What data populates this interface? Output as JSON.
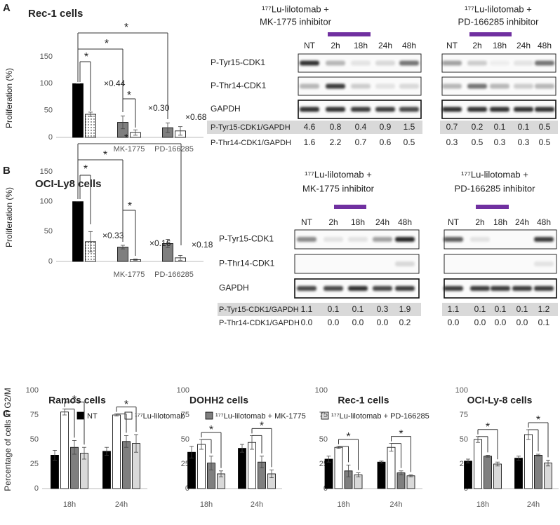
{
  "panel_labels": [
    "A",
    "B",
    "C"
  ],
  "legend": [
    {
      "name": "NT",
      "color": "#000000"
    },
    {
      "name": "¹⁷⁷Lu-lilotomab",
      "color": "#ffffff"
    },
    {
      "name": "¹⁷⁷Lu-lilotomab + MK-1775",
      "color": "#7f7f7f"
    },
    {
      "name": "¹⁷⁷Lu-lilotomab + PD-166285",
      "color": "#d9d9d9"
    }
  ],
  "chart_data": [
    {
      "type": "bar",
      "title": "Rec-1 cells",
      "ylabel": "Proliferation (%)",
      "categories": [
        null,
        "MK-1775",
        "PD-166285"
      ],
      "series": [
        {
          "colors": [
            "#000000",
            "#7f7f7f",
            "#7f7f7f"
          ],
          "values": [
            100,
            28,
            18
          ],
          "errors": [
            0,
            12,
            9
          ]
        },
        {
          "colors": [
            "#ffffff",
            "#ffffff",
            "#ffffff"
          ],
          "patterns": [
            "dots",
            null,
            null
          ],
          "values": [
            43,
            9,
            12
          ],
          "errors": [
            4,
            5,
            8
          ]
        }
      ],
      "ylim": [
        0,
        150
      ],
      "yticks": [
        0,
        50,
        100,
        150
      ],
      "annotations": [
        "×0.44",
        "×0.30",
        "×0.68"
      ],
      "significance": [
        "*",
        "*",
        "*",
        "*"
      ]
    },
    {
      "type": "bar",
      "title": "OCI-Ly8 cells",
      "ylabel": "Proliferation (%)",
      "categories": [
        null,
        "MK-1775",
        "PD-166285"
      ],
      "series": [
        {
          "colors": [
            "#000000",
            "#7f7f7f",
            "#7f7f7f"
          ],
          "values": [
            100,
            24,
            30
          ],
          "errors": [
            0,
            3,
            7
          ]
        },
        {
          "colors": [
            "#ffffff",
            "#ffffff",
            "#ffffff"
          ],
          "patterns": [
            "dots",
            null,
            null
          ],
          "values": [
            33,
            3,
            6
          ],
          "errors": [
            17,
            1,
            4
          ]
        }
      ],
      "ylim": [
        0,
        150
      ],
      "yticks": [
        0,
        50,
        100,
        150
      ],
      "annotations": [
        "×0.33",
        "×0.16",
        "×0.18"
      ],
      "significance": [
        "*",
        "*",
        "*",
        "*"
      ]
    },
    {
      "type": "bar",
      "title": "Ramos cells",
      "ylabel": "Percentage of cells in G2/M",
      "categories": [
        "18h",
        "24h"
      ],
      "series": [
        {
          "values": [
            34,
            38
          ],
          "errors": [
            5,
            4
          ]
        },
        {
          "values": [
            78,
            75
          ],
          "errors": [
            3,
            1
          ]
        },
        {
          "values": [
            42,
            48
          ],
          "errors": [
            7,
            6
          ]
        },
        {
          "values": [
            36,
            46
          ],
          "errors": [
            6,
            9
          ]
        }
      ],
      "ylim": [
        0,
        100
      ],
      "yticks": [
        0,
        25,
        50,
        75,
        100
      ],
      "significance": [
        "*",
        "*"
      ]
    },
    {
      "type": "bar",
      "title": "DOHH2 cells",
      "categories": [
        "18h",
        "24h"
      ],
      "series": [
        {
          "values": [
            37,
            41
          ],
          "errors": [
            6,
            4
          ]
        },
        {
          "values": [
            45,
            47
          ],
          "errors": [
            5,
            7
          ]
        },
        {
          "values": [
            26,
            27
          ],
          "errors": [
            7,
            6
          ]
        },
        {
          "values": [
            15,
            15
          ],
          "errors": [
            3,
            4
          ]
        }
      ],
      "ylim": [
        0,
        100
      ],
      "yticks": [
        0,
        25,
        50,
        75,
        100
      ],
      "significance": [
        "*",
        "*"
      ]
    },
    {
      "type": "bar",
      "title": "Rec-1 cells",
      "categories": [
        "18h",
        "24h"
      ],
      "series": [
        {
          "values": [
            30,
            27
          ],
          "errors": [
            3,
            1
          ]
        },
        {
          "values": [
            42,
            42
          ],
          "errors": [
            1,
            4
          ]
        },
        {
          "values": [
            18,
            16
          ],
          "errors": [
            6,
            2
          ]
        },
        {
          "values": [
            14,
            13
          ],
          "errors": [
            2,
            1
          ]
        }
      ],
      "ylim": [
        0,
        100
      ],
      "yticks": [
        0,
        25,
        50,
        75,
        100
      ],
      "significance": [
        "*",
        "*"
      ]
    },
    {
      "type": "bar",
      "title": "OCI-Ly-8 cells",
      "categories": [
        "18h",
        "24h"
      ],
      "series": [
        {
          "values": [
            28,
            31
          ],
          "errors": [
            2,
            2
          ]
        },
        {
          "values": [
            50,
            55
          ],
          "errors": [
            3,
            5
          ]
        },
        {
          "values": [
            33,
            34
          ],
          "errors": [
            1,
            1
          ]
        },
        {
          "values": [
            25,
            26
          ],
          "errors": [
            2,
            3
          ]
        }
      ],
      "ylim": [
        0,
        100
      ],
      "yticks": [
        0,
        25,
        50,
        75,
        100
      ],
      "significance": [
        "*",
        "*"
      ]
    }
  ],
  "blots": [
    {
      "title_lines": [
        "¹⁷⁷Lu-lilotomab +",
        "MK-1775 inhibitor"
      ],
      "lanes": [
        "NT",
        "2h",
        "18h",
        "24h",
        "48h"
      ],
      "rows": [
        "P-Tyr15-CDK1",
        "P-Thr14-CDK1",
        "GAPDH"
      ],
      "quant": [
        {
          "label": "P-Tyr15-CDK1/GAPDH",
          "values": [
            "4.6",
            "0.8",
            "0.4",
            "0.9",
            "1.5"
          ]
        },
        {
          "label": "P-Thr14-CDK1/GAPDH",
          "values": [
            "1.6",
            "2.2",
            "0.7",
            "0.6",
            "0.5"
          ]
        }
      ]
    },
    {
      "title_lines": [
        "¹⁷⁷Lu-lilotomab +",
        "PD-166285 inhibitor"
      ],
      "lanes": [
        "NT",
        "2h",
        "18h",
        "24h",
        "48h"
      ],
      "quant": [
        {
          "values": [
            "0.7",
            "0.2",
            "0.1",
            "0.1",
            "0.5"
          ]
        },
        {
          "values": [
            "0.3",
            "0.5",
            "0.3",
            "0.3",
            "0.5"
          ]
        }
      ]
    },
    {
      "title_lines": [
        "¹⁷⁷Lu-lilotomab +",
        "MK-1775 inhibitor"
      ],
      "lanes": [
        "NT",
        "2h",
        "18h",
        "24h",
        "48h"
      ],
      "rows": [
        "P-Tyr15-CDK1",
        "P-Thr14-CDK1",
        "GAPDH"
      ],
      "quant": [
        {
          "label": "P-Tyr15-CDK1/GAPDH",
          "values": [
            "1.1",
            "0.1",
            "0.1",
            "0.3",
            "1.9"
          ]
        },
        {
          "label": "P-Thr14-CDK1/GAPDH",
          "values": [
            "0.0",
            "0.0",
            "0.0",
            "0.0",
            "0.2"
          ]
        }
      ]
    },
    {
      "title_lines": [
        "¹⁷⁷Lu-lilotomab +",
        "PD-166285 inhibitor"
      ],
      "lanes": [
        "NT",
        "2h",
        "18h",
        "24h",
        "48h"
      ],
      "quant": [
        {
          "values": [
            "1.1",
            "0.1",
            "0.1",
            "0.1",
            "1.2"
          ]
        },
        {
          "values": [
            "0.0",
            "0.0",
            "0.0",
            "0.0",
            "0.1"
          ]
        }
      ]
    }
  ]
}
